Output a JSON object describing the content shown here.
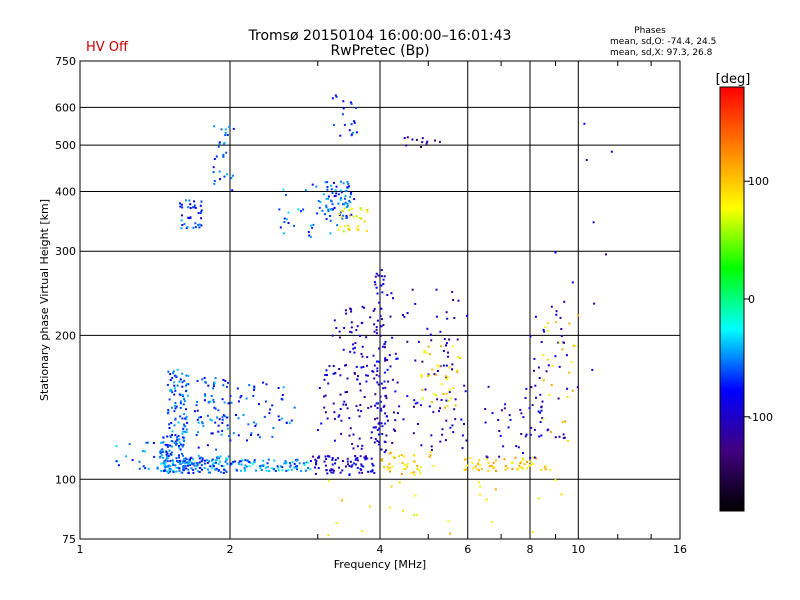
{
  "chart_data": {
    "type": "scatter",
    "title": "Tromsø 20150104 16:00:00–16:01:43",
    "subtitle": "RwPretec (Bp)",
    "status": "HV Off",
    "xlabel": "Frequency [MHz]",
    "ylabel": "Stationary phase Virtual Height [km]",
    "x_scale": "log",
    "y_scale": "log",
    "xlim": [
      1,
      16
    ],
    "ylim": [
      75,
      750
    ],
    "x_ticks": [
      1,
      2,
      4,
      6,
      8,
      10,
      16
    ],
    "y_ticks": [
      75,
      100,
      200,
      300,
      400,
      500,
      600,
      750
    ],
    "grid": true,
    "phases_box": {
      "title": "Phases",
      "line1": "mean, sd,O: -74.4, 24.5",
      "line2": "mean, sd,X: 97.3, 26.8"
    },
    "colorbar": {
      "label": "[deg]",
      "range": [
        -180,
        180
      ],
      "ticks": [
        100,
        0,
        -100
      ],
      "colors": [
        "#ff0000",
        "#ff8000",
        "#ffff00",
        "#00ff00",
        "#00ffff",
        "#0000ff",
        "#400080",
        "#000000"
      ]
    },
    "clusters": [
      {
        "f": [
          1.43,
          1.66
        ],
        "h": [
          103,
          112
        ],
        "phase": -55,
        "n": 90
      },
      {
        "f": [
          1.45,
          1.62
        ],
        "h": [
          112,
          125
        ],
        "phase": -60,
        "n": 60
      },
      {
        "f": [
          1.5,
          1.65
        ],
        "h": [
          125,
          170
        ],
        "phase": -60,
        "n": 80
      },
      {
        "f": [
          1.65,
          2.0
        ],
        "h": [
          103,
          112
        ],
        "phase": -55,
        "n": 80
      },
      {
        "f": [
          1.7,
          2.0
        ],
        "h": [
          115,
          165
        ],
        "phase": -62,
        "n": 70
      },
      {
        "f": [
          2.0,
          2.9
        ],
        "h": [
          104,
          110
        ],
        "phase": -50,
        "n": 90
      },
      {
        "f": [
          2.0,
          2.7
        ],
        "h": [
          120,
          160
        ],
        "phase": -65,
        "n": 50
      },
      {
        "f": [
          1.15,
          1.45
        ],
        "h": [
          105,
          120
        ],
        "phase": -55,
        "n": 20
      },
      {
        "f": [
          1.58,
          1.76
        ],
        "h": [
          335,
          385
        ],
        "phase": -65,
        "n": 40
      },
      {
        "f": [
          1.85,
          2.05
        ],
        "h": [
          400,
          550
        ],
        "phase": -60,
        "n": 30
      },
      {
        "f": [
          2.5,
          3.3
        ],
        "h": [
          320,
          420
        ],
        "phase": -55,
        "n": 40
      },
      {
        "f": [
          3.1,
          3.55
        ],
        "h": [
          350,
          420
        ],
        "phase": -60,
        "n": 60
      },
      {
        "f": [
          3.3,
          3.8
        ],
        "h": [
          330,
          370
        ],
        "phase": 80,
        "n": 30
      },
      {
        "f": [
          3.2,
          3.6
        ],
        "h": [
          520,
          640
        ],
        "phase": -70,
        "n": 20
      },
      {
        "f": [
          2.9,
          3.9
        ],
        "h": [
          102,
          112
        ],
        "phase": -95,
        "n": 80
      },
      {
        "f": [
          3.0,
          4.0
        ],
        "h": [
          115,
          175
        ],
        "phase": -100,
        "n": 90
      },
      {
        "f": [
          3.2,
          4.0
        ],
        "h": [
          180,
          230
        ],
        "phase": -100,
        "n": 40
      },
      {
        "f": [
          3.9,
          4.15
        ],
        "h": [
          110,
          280
        ],
        "phase": -95,
        "n": 80
      },
      {
        "f": [
          4.0,
          5.2
        ],
        "h": [
          102,
          114
        ],
        "phase": 95,
        "n": 40
      },
      {
        "f": [
          4.1,
          5.5
        ],
        "h": [
          115,
          250
        ],
        "phase": -100,
        "n": 70
      },
      {
        "f": [
          4.8,
          5.8
        ],
        "h": [
          140,
          190
        ],
        "phase": 90,
        "n": 40
      },
      {
        "f": [
          4.3,
          5.3
        ],
        "h": [
          495,
          520
        ],
        "phase": -120,
        "n": 12
      },
      {
        "f": [
          5.3,
          6.0
        ],
        "h": [
          115,
          250
        ],
        "phase": -105,
        "n": 30
      },
      {
        "f": [
          5.8,
          8.8
        ],
        "h": [
          104,
          111
        ],
        "phase": 100,
        "n": 60
      },
      {
        "f": [
          6.5,
          8.5
        ],
        "h": [
          110,
          160
        ],
        "phase": -100,
        "n": 40
      },
      {
        "f": [
          8.0,
          9.5
        ],
        "h": [
          120,
          250
        ],
        "phase": -100,
        "n": 40
      },
      {
        "f": [
          8.5,
          10.0
        ],
        "h": [
          115,
          230
        ],
        "phase": 95,
        "n": 25
      },
      {
        "f": [
          3.0,
          9.5
        ],
        "h": [
          76,
          100
        ],
        "phase": 90,
        "n": 25
      },
      {
        "f": [
          9.0,
          12.5
        ],
        "h": [
          150,
          600
        ],
        "phase": -100,
        "n": 12
      }
    ]
  }
}
